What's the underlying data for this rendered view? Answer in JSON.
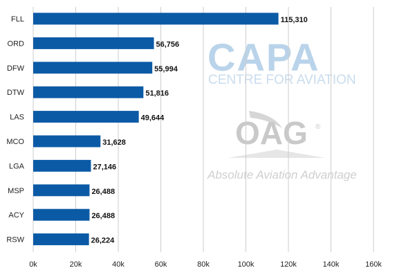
{
  "watermark": {
    "capa": "CAPA",
    "capa_sub": "CENTRE FOR AVIATION",
    "oag": "OAG",
    "oag_mark": "®",
    "tagline": "Absolute Aviation Advantage",
    "capa_color": "#b9d3ea",
    "oag_color": "#c9c9c9"
  },
  "chart_data": {
    "type": "bar",
    "orientation": "horizontal",
    "categories": [
      "FLL",
      "ORD",
      "DFW",
      "DTW",
      "LAS",
      "MCO",
      "LGA",
      "MSP",
      "ACY",
      "RSW"
    ],
    "values": [
      115310,
      56756,
      55994,
      51816,
      49644,
      31628,
      27146,
      26488,
      26488,
      26224
    ],
    "value_labels": [
      "115,310",
      "56,756",
      "55,994",
      "51,816",
      "49,644",
      "31,628",
      "27,146",
      "26,488",
      "26,488",
      "26,224"
    ],
    "xlim": [
      0,
      160000
    ],
    "x_ticks": [
      0,
      20000,
      40000,
      60000,
      80000,
      100000,
      120000,
      140000,
      160000
    ],
    "x_tick_labels": [
      "0k",
      "20k",
      "40k",
      "60k",
      "80k",
      "100k",
      "120k",
      "140k",
      "160k"
    ],
    "grid": "vertical",
    "bar_color": "#0b5aa6",
    "grid_color": "#cccccc"
  }
}
